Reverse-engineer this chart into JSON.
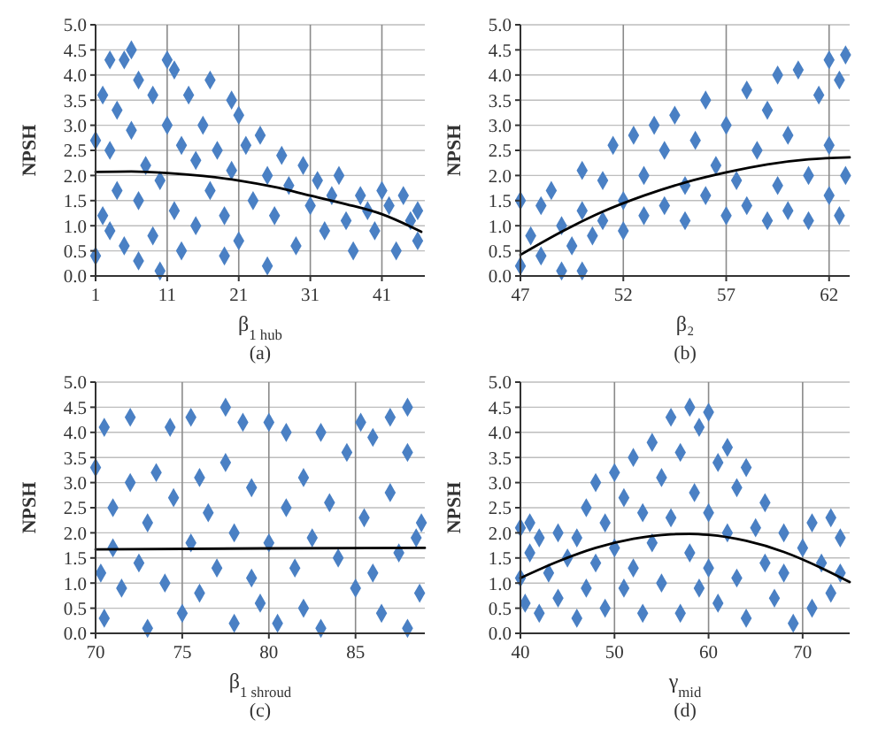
{
  "chart_data": [
    {
      "type": "scatter",
      "xlabel": "β$_{1 hub}$",
      "ylabel": "NPSH",
      "annotations": [
        "(a)"
      ],
      "xlim": [
        1,
        47
      ],
      "xticks": [
        1,
        11,
        21,
        31,
        41
      ],
      "ylim": [
        0,
        5
      ],
      "yticks": [
        {
          "value": 0,
          "label": "0.0"
        },
        {
          "value": 0.5,
          "label": "0.5"
        },
        {
          "value": 1,
          "label": "1.0"
        },
        {
          "value": 1.5,
          "label": "1.5"
        },
        {
          "value": 2,
          "label": "2.0"
        },
        {
          "value": 2.5,
          "label": "2.5"
        },
        {
          "value": 3,
          "label": "3.0"
        },
        {
          "value": 3.5,
          "label": "3.5"
        },
        {
          "value": 4,
          "label": "4.0"
        },
        {
          "value": 4.5,
          "label": "4.5"
        },
        {
          "value": 5,
          "label": "5.0"
        }
      ],
      "grid": true,
      "marker": "diamond",
      "series": [
        {
          "type": "scatter",
          "color": "#4a80c4",
          "x": [
            1,
            1,
            2,
            2,
            3,
            3,
            3,
            4,
            4,
            5,
            5,
            6,
            6,
            7,
            7,
            7,
            8,
            9,
            9,
            10,
            10,
            11,
            11,
            12,
            12,
            13,
            13,
            14,
            15,
            15,
            16,
            17,
            17,
            18,
            19,
            19,
            20,
            20,
            21,
            21,
            22,
            23,
            24,
            25,
            25,
            26,
            27,
            28,
            29,
            30,
            31,
            32,
            33,
            34,
            35,
            36,
            37,
            38,
            39,
            40,
            41,
            42,
            43,
            44,
            45,
            46,
            46
          ],
          "values": [
            2.7,
            0.4,
            3.6,
            1.2,
            4.3,
            2.5,
            0.9,
            3.3,
            1.7,
            4.3,
            0.6,
            4.5,
            2.9,
            3.9,
            1.5,
            0.3,
            2.2,
            3.6,
            0.8,
            1.9,
            0.1,
            4.3,
            3.0,
            4.1,
            1.3,
            2.6,
            0.5,
            3.6,
            2.3,
            1.0,
            3.0,
            3.9,
            1.7,
            2.5,
            0.4,
            1.2,
            3.5,
            2.1,
            3.2,
            0.7,
            2.6,
            1.5,
            2.8,
            0.2,
            2.0,
            1.2,
            2.4,
            1.8,
            0.6,
            2.2,
            1.4,
            1.9,
            0.9,
            1.6,
            2.0,
            1.1,
            0.5,
            1.6,
            1.3,
            0.9,
            1.7,
            1.4,
            0.5,
            1.6,
            1.1,
            1.3,
            0.7
          ]
        },
        {
          "type": "line",
          "color": "#000000",
          "marker": "none",
          "x": [
            1,
            6,
            11,
            16,
            21,
            26,
            31,
            36,
            41,
            46.5
          ],
          "values": [
            2.07,
            2.08,
            2.05,
            1.99,
            1.9,
            1.77,
            1.6,
            1.43,
            1.23,
            0.88
          ]
        }
      ]
    },
    {
      "type": "scatter",
      "xlabel": "β₂",
      "ylabel": "NPSH",
      "annotations": [
        "(b)"
      ],
      "xlim": [
        47,
        63
      ],
      "xticks": [
        47,
        52,
        57,
        62
      ],
      "ylim": [
        0,
        5
      ],
      "yticks": [
        {
          "value": 0,
          "label": "0.0"
        },
        {
          "value": 0.5,
          "label": "0.5"
        },
        {
          "value": 1,
          "label": "1.0"
        },
        {
          "value": 1.5,
          "label": "1.5"
        },
        {
          "value": 2,
          "label": "2.0"
        },
        {
          "value": 2.5,
          "label": "2.5"
        },
        {
          "value": 3,
          "label": "3.0"
        },
        {
          "value": 3.5,
          "label": "3.5"
        },
        {
          "value": 4,
          "label": "4.0"
        },
        {
          "value": 4.5,
          "label": "4.5"
        },
        {
          "value": 5,
          "label": "5.0"
        }
      ],
      "grid": true,
      "marker": "diamond",
      "series": [
        {
          "type": "scatter",
          "color": "#4a80c4",
          "x": [
            47,
            47,
            47.5,
            48,
            48,
            48.5,
            49,
            49,
            49.5,
            50,
            50,
            50,
            50.5,
            51,
            51,
            51.5,
            52,
            52,
            52.5,
            53,
            53,
            53.5,
            54,
            54,
            54.5,
            55,
            55,
            55.5,
            56,
            56,
            56.5,
            57,
            57,
            57.5,
            58,
            58,
            58.5,
            59,
            59,
            59.5,
            59.5,
            60,
            60,
            60.5,
            61,
            61,
            61.5,
            62,
            62,
            62,
            62.5,
            62.5,
            62.8,
            62.8
          ],
          "values": [
            1.5,
            0.2,
            0.8,
            1.4,
            0.4,
            1.7,
            0.1,
            1.0,
            0.6,
            2.1,
            1.3,
            0.1,
            0.8,
            1.9,
            1.1,
            2.6,
            1.5,
            0.9,
            2.8,
            2.0,
            1.2,
            3.0,
            2.5,
            1.4,
            3.2,
            1.8,
            1.1,
            2.7,
            3.5,
            1.6,
            2.2,
            1.2,
            3.0,
            1.9,
            3.7,
            1.4,
            2.5,
            1.1,
            3.3,
            4.0,
            1.8,
            2.8,
            1.3,
            4.1,
            2.0,
            1.1,
            3.6,
            4.3,
            1.6,
            2.6,
            1.2,
            3.9,
            4.4,
            2.0
          ]
        },
        {
          "type": "line",
          "color": "#000000",
          "marker": "none",
          "x": [
            47,
            49,
            51,
            53,
            55,
            57,
            59,
            61,
            63
          ],
          "values": [
            0.42,
            0.88,
            1.28,
            1.6,
            1.86,
            2.06,
            2.22,
            2.32,
            2.36
          ]
        }
      ]
    },
    {
      "type": "scatter",
      "xlabel": "β$_{1 shroud}$",
      "ylabel": "NPSH",
      "annotations": [
        "(c)"
      ],
      "xlim": [
        70,
        89
      ],
      "xticks": [
        70,
        75,
        80,
        85
      ],
      "ylim": [
        0,
        5
      ],
      "yticks": [
        {
          "value": 0,
          "label": "0.0"
        },
        {
          "value": 0.5,
          "label": "0.5"
        },
        {
          "value": 1,
          "label": "1.0"
        },
        {
          "value": 1.5,
          "label": "1.5"
        },
        {
          "value": 2,
          "label": "2.0"
        },
        {
          "value": 2.5,
          "label": "2.5"
        },
        {
          "value": 3,
          "label": "3.0"
        },
        {
          "value": 3.5,
          "label": "3.5"
        },
        {
          "value": 4,
          "label": "4.0"
        },
        {
          "value": 4.5,
          "label": "4.5"
        },
        {
          "value": 5,
          "label": "5.0"
        }
      ],
      "grid": true,
      "marker": "diamond",
      "series": [
        {
          "type": "scatter",
          "color": "#4a80c4",
          "x": [
            70,
            70.3,
            70.5,
            70.5,
            71,
            71,
            71.5,
            72,
            72,
            72.5,
            73,
            73,
            73.5,
            74,
            74.3,
            74.5,
            75,
            75.5,
            75.5,
            76,
            76,
            76.5,
            77,
            77.5,
            77.5,
            78,
            78,
            78.5,
            79,
            79,
            79.5,
            80,
            80,
            80.5,
            81,
            81,
            81.5,
            82,
            82,
            82.5,
            83,
            83,
            83.5,
            84,
            84.5,
            85,
            85.3,
            85.5,
            86,
            86,
            86.5,
            87,
            87,
            87.5,
            88,
            88,
            88,
            88.5,
            88.7,
            88.8
          ],
          "values": [
            3.3,
            1.2,
            4.1,
            0.3,
            2.5,
            1.7,
            0.9,
            4.3,
            3.0,
            1.4,
            0.1,
            2.2,
            3.2,
            1.0,
            4.1,
            2.7,
            0.4,
            4.3,
            1.8,
            3.1,
            0.8,
            2.4,
            1.3,
            4.5,
            3.4,
            0.2,
            2.0,
            4.2,
            1.1,
            2.9,
            0.6,
            1.8,
            4.2,
            0.2,
            4.0,
            2.5,
            1.3,
            3.1,
            0.5,
            1.9,
            4.0,
            0.1,
            2.6,
            1.5,
            3.6,
            0.9,
            4.2,
            2.3,
            1.2,
            3.9,
            0.4,
            4.3,
            2.8,
            1.6,
            0.1,
            4.5,
            3.6,
            1.9,
            0.8,
            2.2
          ]
        },
        {
          "type": "line",
          "color": "#000000",
          "marker": "none",
          "x": [
            70,
            79.5,
            89
          ],
          "values": [
            1.67,
            1.69,
            1.7
          ]
        }
      ]
    },
    {
      "type": "scatter",
      "xlabel": "γ$_{mid}$",
      "ylabel": "NPSH",
      "annotations": [
        "(d)"
      ],
      "xlim": [
        40,
        75
      ],
      "xticks": [
        40,
        50,
        60,
        70
      ],
      "ylim": [
        0,
        5
      ],
      "yticks": [
        {
          "value": 0,
          "label": "0.0"
        },
        {
          "value": 0.5,
          "label": "0.5"
        },
        {
          "value": 1,
          "label": "1.0"
        },
        {
          "value": 1.5,
          "label": "1.5"
        },
        {
          "value": 2,
          "label": "2.0"
        },
        {
          "value": 2.5,
          "label": "2.5"
        },
        {
          "value": 3,
          "label": "3.0"
        },
        {
          "value": 3.5,
          "label": "3.5"
        },
        {
          "value": 4,
          "label": "4.0"
        },
        {
          "value": 4.5,
          "label": "4.5"
        },
        {
          "value": 5,
          "label": "5.0"
        }
      ],
      "grid": true,
      "marker": "diamond",
      "series": [
        {
          "type": "scatter",
          "color": "#4a80c4",
          "x": [
            40,
            40,
            40.5,
            41,
            41,
            42,
            42,
            43,
            44,
            44,
            45,
            46,
            46,
            47,
            47,
            48,
            48,
            49,
            49,
            50,
            50,
            51,
            51,
            52,
            52,
            53,
            53,
            54,
            54,
            55,
            55,
            56,
            56,
            57,
            57,
            58,
            58,
            58.5,
            59,
            59,
            60,
            60,
            60,
            61,
            61,
            62,
            62,
            63,
            63,
            64,
            64,
            65,
            66,
            66,
            67,
            68,
            68,
            69,
            70,
            71,
            71,
            72,
            73,
            73,
            74,
            74
          ],
          "values": [
            2.1,
            1.1,
            0.6,
            2.2,
            1.6,
            0.4,
            1.9,
            1.2,
            0.7,
            2.0,
            1.5,
            0.3,
            1.9,
            2.5,
            0.9,
            1.4,
            3.0,
            0.5,
            2.2,
            1.7,
            3.2,
            0.9,
            2.7,
            3.5,
            1.3,
            0.4,
            2.4,
            3.8,
            1.8,
            3.1,
            1.0,
            4.3,
            2.3,
            0.4,
            3.6,
            4.5,
            1.6,
            2.8,
            4.1,
            0.9,
            4.4,
            2.4,
            1.3,
            3.4,
            0.6,
            3.7,
            2.0,
            1.1,
            2.9,
            3.3,
            0.3,
            2.1,
            1.4,
            2.6,
            0.7,
            2.0,
            1.2,
            0.2,
            1.7,
            2.2,
            0.5,
            1.4,
            2.3,
            0.8,
            1.9,
            1.2
          ]
        },
        {
          "type": "line",
          "color": "#000000",
          "marker": "none",
          "x": [
            40,
            44,
            48,
            52,
            56,
            58,
            60,
            64,
            68,
            72,
            75
          ],
          "values": [
            1.1,
            1.43,
            1.7,
            1.88,
            1.97,
            1.98,
            1.96,
            1.84,
            1.62,
            1.3,
            1.02
          ]
        }
      ]
    }
  ]
}
